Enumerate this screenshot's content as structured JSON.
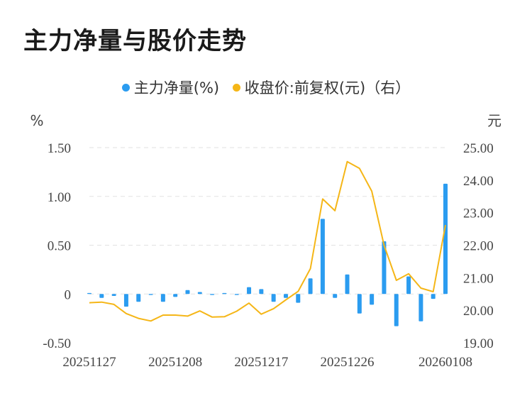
{
  "title": "主力净量与股价走势",
  "legend": [
    {
      "label": "主力净量(%)",
      "color": "#2b9cf0"
    },
    {
      "label": "收盘价:前复权(元)（右）",
      "color": "#f5b617"
    }
  ],
  "chart_data": {
    "type": "bar+line",
    "title": "主力净量与股价走势",
    "left_axis": {
      "unit": "%",
      "ticks": [
        "1.50",
        "1.00",
        "0.50",
        "0",
        "-0.50"
      ],
      "ylim": [
        -0.5,
        1.5
      ]
    },
    "right_axis": {
      "unit": "元",
      "ticks": [
        "25.00",
        "24.00",
        "23.00",
        "22.00",
        "21.00",
        "20.00",
        "19.00"
      ],
      "ylim": [
        19.0,
        25.0
      ]
    },
    "x_tick_labels": [
      "20251127",
      "20251208",
      "20251217",
      "20251226",
      "20260108"
    ],
    "x_tick_index": [
      0,
      7,
      14,
      21,
      29
    ],
    "grid": true,
    "series": [
      {
        "name": "主力净量(%)",
        "type": "bar",
        "color": "#2b9cf0",
        "values": [
          0.01,
          -0.04,
          -0.02,
          -0.13,
          -0.08,
          -0.01,
          -0.08,
          -0.03,
          0.04,
          0.02,
          -0.01,
          0.01,
          -0.01,
          0.07,
          0.05,
          -0.08,
          -0.04,
          -0.09,
          0.16,
          0.77,
          -0.04,
          0.2,
          -0.2,
          -0.11,
          0.54,
          -0.33,
          0.18,
          -0.28,
          -0.05,
          1.13
        ]
      },
      {
        "name": "收盘价:前复权(元)（右）",
        "type": "line",
        "color": "#f5b617",
        "values": [
          20.23,
          20.25,
          20.18,
          19.9,
          19.75,
          19.67,
          19.85,
          19.85,
          19.82,
          19.98,
          19.79,
          19.8,
          19.97,
          20.22,
          19.88,
          20.05,
          20.32,
          20.58,
          21.28,
          23.42,
          23.06,
          24.57,
          24.36,
          23.66,
          22.0,
          20.92,
          21.12,
          20.68,
          20.57,
          22.62
        ]
      }
    ]
  }
}
